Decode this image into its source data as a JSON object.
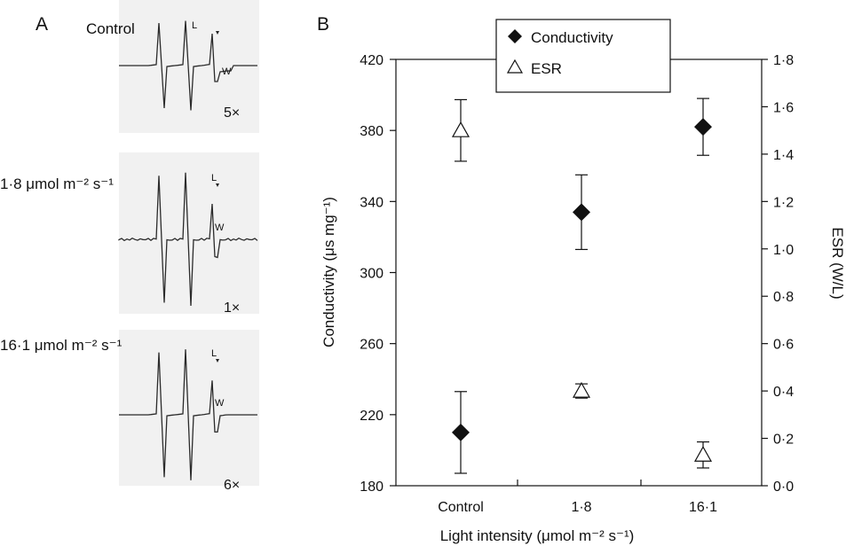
{
  "panels": {
    "a_letter": "A",
    "b_letter": "B"
  },
  "spectra": [
    {
      "label": "Control",
      "scale": "5×",
      "marker_l": "L",
      "marker_w": "W"
    },
    {
      "label": "1·8 μmol m⁻² s⁻¹",
      "scale": "1×",
      "marker_l": "L",
      "marker_w": "W"
    },
    {
      "label": "16·1 μmol m⁻² s⁻¹",
      "scale": "6×",
      "marker_l": "L",
      "marker_w": "W"
    }
  ],
  "chart_data": {
    "type": "scatter",
    "title": "",
    "xlabel": "Light intensity (μmol m⁻² s⁻¹)",
    "ylabel": "Conductivity (μs mg⁻¹)",
    "y2label": "ESR (W/L)",
    "categories": [
      "Control",
      "1·8",
      "16·1"
    ],
    "ylim": [
      180,
      420
    ],
    "yticks": [
      "180",
      "220",
      "260",
      "300",
      "340",
      "380",
      "420"
    ],
    "y2lim": [
      0.0,
      1.8
    ],
    "y2ticks": [
      "0·0",
      "0·2",
      "0·4",
      "0·6",
      "0·8",
      "1·0",
      "1·2",
      "1·4",
      "1·6",
      "1·8"
    ],
    "legend_position": "top-left",
    "grid": false,
    "series": [
      {
        "name": "Conductivity",
        "axis": "left",
        "marker": "filled-diamond",
        "values": [
          210,
          334,
          382
        ],
        "errors": [
          23,
          21,
          16
        ]
      },
      {
        "name": "ESR",
        "axis": "right",
        "marker": "open-triangle",
        "values": [
          1.5,
          0.4,
          0.13
        ],
        "errors": [
          0.13,
          0.03,
          0.055
        ]
      }
    ]
  }
}
